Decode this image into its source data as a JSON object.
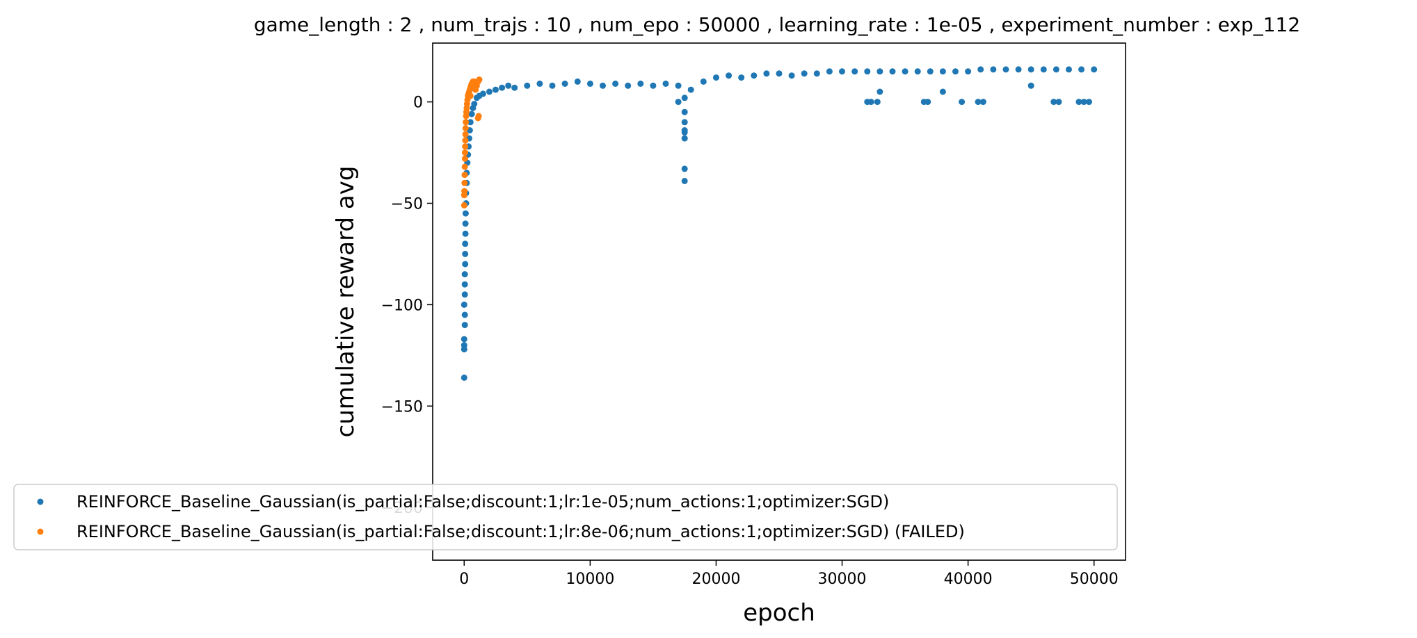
{
  "chart_data": {
    "type": "scatter",
    "title": "game_length : 2 , num_trajs : 10 , num_epo : 50000 , learning_rate : 1e-05 , experiment_number : exp_112",
    "xlabel": "epoch",
    "ylabel": "cumulative reward avg",
    "xlim": [
      -2500,
      52500
    ],
    "ylim": [
      -226,
      29
    ],
    "x_ticks": [
      0,
      10000,
      20000,
      30000,
      40000,
      50000
    ],
    "y_ticks": [
      0,
      -50,
      -100,
      -150,
      -200
    ],
    "x_tick_labels": [
      "0",
      "10000",
      "20000",
      "30000",
      "40000",
      "50000"
    ],
    "y_tick_labels": [
      "0",
      "−50",
      "−100",
      "−150",
      "−200"
    ],
    "grid": false,
    "legend_position": "lower-left",
    "series": [
      {
        "name": "REINFORCE_Baseline_Gaussian(is_partial:False;discount:1;lr:1e-05;num_actions:1;optimizer:SGD)",
        "color": "#1f77b4",
        "points": [
          [
            0,
            -136
          ],
          [
            0,
            -122
          ],
          [
            0,
            -120
          ],
          [
            0,
            -117
          ],
          [
            50,
            -110
          ],
          [
            50,
            -105
          ],
          [
            0,
            -100
          ],
          [
            50,
            -95
          ],
          [
            50,
            -90
          ],
          [
            50,
            -85
          ],
          [
            80,
            -80
          ],
          [
            80,
            -75
          ],
          [
            80,
            -70
          ],
          [
            100,
            -65
          ],
          [
            100,
            -60
          ],
          [
            120,
            -55
          ],
          [
            150,
            -50
          ],
          [
            150,
            -45
          ],
          [
            200,
            -40
          ],
          [
            200,
            -35
          ],
          [
            250,
            -30
          ],
          [
            300,
            -26
          ],
          [
            350,
            -22
          ],
          [
            400,
            -18
          ],
          [
            450,
            -14
          ],
          [
            500,
            -10
          ],
          [
            600,
            -6
          ],
          [
            700,
            -3
          ],
          [
            800,
            -1
          ],
          [
            1000,
            2
          ],
          [
            1200,
            3
          ],
          [
            1500,
            4
          ],
          [
            2000,
            5
          ],
          [
            2500,
            6
          ],
          [
            3000,
            7
          ],
          [
            3500,
            8
          ],
          [
            4000,
            7
          ],
          [
            5000,
            8
          ],
          [
            6000,
            9
          ],
          [
            7000,
            8
          ],
          [
            8000,
            9
          ],
          [
            9000,
            10
          ],
          [
            10000,
            9
          ],
          [
            11000,
            8
          ],
          [
            12000,
            9
          ],
          [
            13000,
            8
          ],
          [
            14000,
            9
          ],
          [
            15000,
            8
          ],
          [
            16000,
            9
          ],
          [
            17000,
            8
          ],
          [
            17500,
            2
          ],
          [
            17500,
            -5
          ],
          [
            17500,
            -10
          ],
          [
            17500,
            -14
          ],
          [
            17500,
            -18
          ],
          [
            17500,
            -33
          ],
          [
            17500,
            -39
          ],
          [
            18000,
            6
          ],
          [
            19000,
            10
          ],
          [
            20000,
            12
          ],
          [
            21000,
            13
          ],
          [
            22000,
            12
          ],
          [
            23000,
            13
          ],
          [
            24000,
            14
          ],
          [
            25000,
            14
          ],
          [
            26000,
            13
          ],
          [
            27000,
            14
          ],
          [
            28000,
            14
          ],
          [
            29000,
            15
          ],
          [
            30000,
            15
          ],
          [
            31000,
            15
          ],
          [
            32000,
            15
          ],
          [
            33000,
            15
          ],
          [
            34000,
            15
          ],
          [
            35000,
            15
          ],
          [
            36000,
            15
          ],
          [
            37000,
            15
          ],
          [
            38000,
            15
          ],
          [
            39000,
            15
          ],
          [
            40000,
            15
          ],
          [
            41000,
            16
          ],
          [
            42000,
            16
          ],
          [
            43000,
            16
          ],
          [
            44000,
            16
          ],
          [
            45000,
            16
          ],
          [
            46000,
            16
          ],
          [
            47000,
            16
          ],
          [
            48000,
            16
          ],
          [
            49000,
            16
          ],
          [
            50000,
            16
          ],
          [
            32000,
            0
          ],
          [
            32300,
            0
          ],
          [
            32800,
            0
          ],
          [
            36500,
            0
          ],
          [
            36800,
            0
          ],
          [
            39500,
            0
          ],
          [
            40800,
            0
          ],
          [
            41200,
            0
          ],
          [
            46800,
            0
          ],
          [
            47200,
            0
          ],
          [
            48800,
            0
          ],
          [
            49200,
            0
          ],
          [
            49600,
            0
          ],
          [
            17000,
            0
          ],
          [
            17500,
            -15
          ],
          [
            33000,
            5
          ],
          [
            38000,
            5
          ],
          [
            45000,
            8
          ]
        ]
      },
      {
        "name": "REINFORCE_Baseline_Gaussian(is_partial:False;discount:1;lr:8e-06;num_actions:1;optimizer:SGD) (FAILED)",
        "color": "#ff7f0e",
        "points": [
          [
            0,
            -51
          ],
          [
            0,
            -46
          ],
          [
            20,
            -44
          ],
          [
            30,
            -40
          ],
          [
            40,
            -36
          ],
          [
            50,
            -32
          ],
          [
            60,
            -28
          ],
          [
            70,
            -25
          ],
          [
            80,
            -22
          ],
          [
            90,
            -19
          ],
          [
            100,
            -16
          ],
          [
            110,
            -13
          ],
          [
            130,
            -10
          ],
          [
            150,
            -7
          ],
          [
            170,
            -5
          ],
          [
            200,
            -3
          ],
          [
            230,
            -1
          ],
          [
            260,
            1
          ],
          [
            300,
            3
          ],
          [
            350,
            4
          ],
          [
            400,
            5
          ],
          [
            450,
            6
          ],
          [
            500,
            7
          ],
          [
            550,
            8
          ],
          [
            600,
            9
          ],
          [
            700,
            10
          ],
          [
            800,
            10
          ],
          [
            900,
            9
          ],
          [
            1000,
            8
          ],
          [
            1100,
            10
          ],
          [
            1200,
            11
          ],
          [
            1100,
            -8
          ],
          [
            1150,
            -7
          ],
          [
            900,
            6
          ],
          [
            700,
            7
          ],
          [
            500,
            3
          ]
        ]
      }
    ]
  }
}
